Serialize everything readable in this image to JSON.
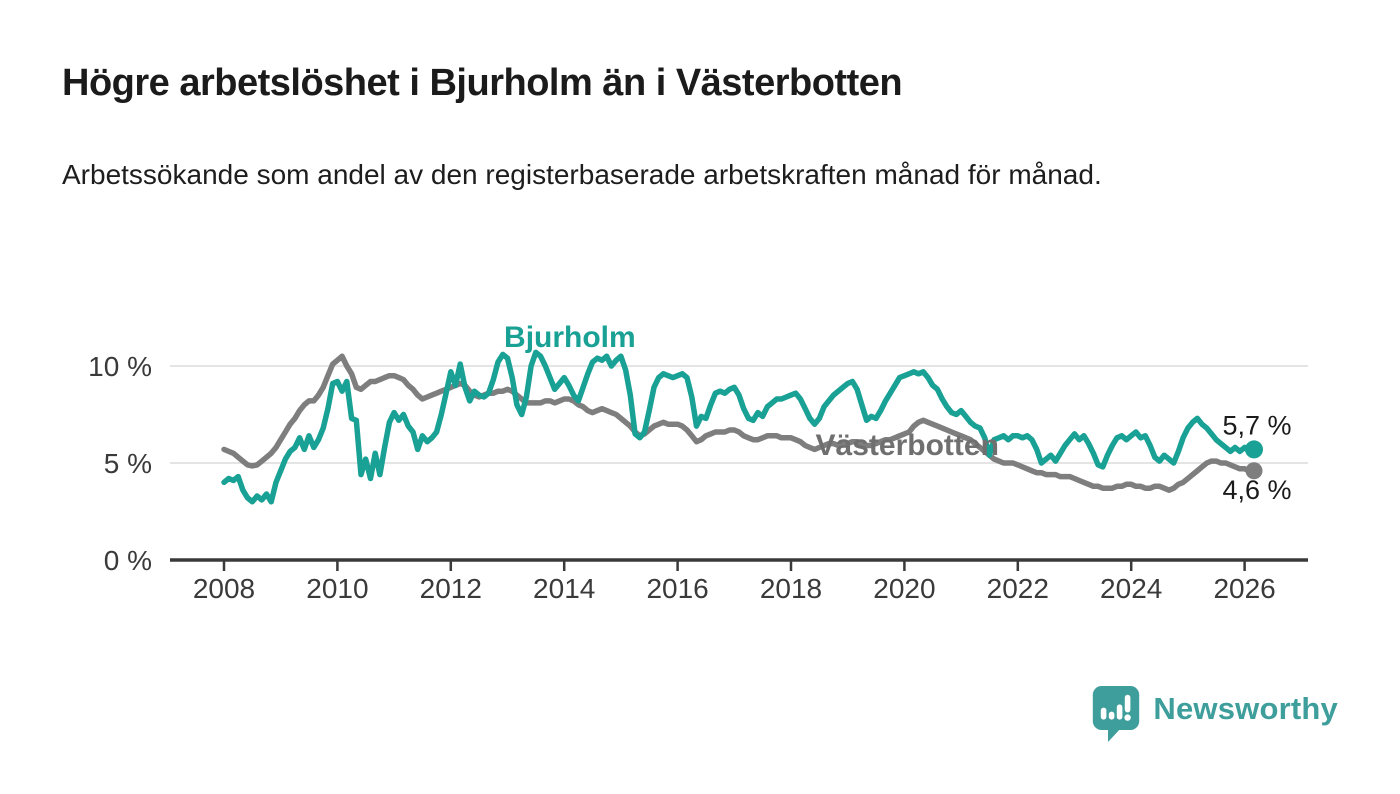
{
  "header": {
    "title": "Högre arbetslöshet i Bjurholm än i Västerbotten",
    "subtitle": "Arbetssökande som andel av den registerbaserade arbetskraften månad för månad."
  },
  "chart_data": {
    "type": "line",
    "frequency": "monthly",
    "x_start": 2008.0,
    "x_step": 0.08333,
    "x_ticks": [
      2008,
      2010,
      2012,
      2014,
      2016,
      2018,
      2020,
      2022,
      2024,
      2026
    ],
    "y_ticks": [
      {
        "value": 0,
        "label": "0 %"
      },
      {
        "value": 5,
        "label": "5 %"
      },
      {
        "value": 10,
        "label": "10 %"
      }
    ],
    "ylim": [
      0,
      11.6
    ],
    "xlim": [
      2007.0,
      2027.2
    ],
    "grid": "horizontal-only",
    "legend_position": "inline-labels",
    "series": [
      {
        "name": "Bjurholm",
        "color": "#18A194",
        "end_label": "5,7 %",
        "end_value": 5.7,
        "values": [
          4.0,
          4.2,
          4.1,
          4.3,
          3.6,
          3.2,
          3.0,
          3.3,
          3.1,
          3.4,
          3.0,
          4.0,
          4.6,
          5.2,
          5.6,
          5.8,
          6.3,
          5.7,
          6.4,
          5.8,
          6.2,
          6.8,
          7.8,
          9.1,
          9.2,
          8.7,
          9.2,
          7.3,
          7.2,
          4.4,
          5.2,
          4.2,
          5.5,
          4.4,
          5.8,
          7.1,
          7.6,
          7.2,
          7.5,
          6.9,
          6.6,
          5.7,
          6.4,
          6.1,
          6.3,
          6.6,
          7.5,
          8.6,
          9.7,
          9.0,
          10.1,
          8.9,
          8.2,
          8.7,
          8.5,
          8.4,
          8.6,
          9.3,
          10.2,
          10.6,
          10.4,
          9.4,
          8.0,
          7.5,
          8.4,
          10.0,
          10.7,
          10.5,
          10.0,
          9.4,
          8.8,
          9.1,
          9.4,
          9.0,
          8.5,
          8.2,
          8.9,
          9.6,
          10.2,
          10.4,
          10.3,
          10.5,
          10.0,
          10.3,
          10.5,
          9.8,
          8.5,
          6.5,
          6.3,
          6.6,
          7.7,
          8.9,
          9.4,
          9.6,
          9.5,
          9.4,
          9.5,
          9.6,
          9.4,
          8.4,
          6.9,
          7.4,
          7.3,
          8.0,
          8.6,
          8.7,
          8.6,
          8.8,
          8.9,
          8.5,
          7.8,
          7.3,
          7.2,
          7.6,
          7.4,
          7.9,
          8.1,
          8.3,
          8.3,
          8.4,
          8.5,
          8.6,
          8.3,
          7.8,
          7.3,
          7.0,
          7.3,
          7.9,
          8.2,
          8.5,
          8.7,
          8.9,
          9.1,
          9.2,
          8.8,
          8.0,
          7.2,
          7.4,
          7.3,
          7.7,
          8.2,
          8.6,
          9.0,
          9.4,
          9.5,
          9.6,
          9.7,
          9.6,
          9.7,
          9.4,
          9.0,
          8.8,
          8.3,
          7.9,
          7.6,
          7.5,
          7.7,
          7.4,
          7.1,
          6.9,
          6.8,
          6.3,
          5.4,
          6.2,
          6.3,
          6.4,
          6.2,
          6.4,
          6.4,
          6.3,
          6.4,
          6.2,
          5.7,
          5.0,
          5.2,
          5.4,
          5.1,
          5.5,
          5.9,
          6.2,
          6.5,
          6.2,
          6.4,
          6.0,
          5.5,
          4.9,
          4.8,
          5.4,
          5.9,
          6.3,
          6.4,
          6.2,
          6.4,
          6.6,
          6.3,
          6.4,
          5.9,
          5.3,
          5.1,
          5.4,
          5.2,
          5.0,
          5.6,
          6.3,
          6.8,
          7.1,
          7.3,
          7.0,
          6.8,
          6.5,
          6.2,
          6.0,
          5.8,
          5.6,
          5.8,
          5.6,
          5.8,
          5.6,
          5.7
        ]
      },
      {
        "name": "Västerbotten",
        "color": "#7E7E7E",
        "label_color": "#6F6F6F",
        "end_label": "4,6 %",
        "end_value": 4.6,
        "values": [
          5.7,
          5.6,
          5.5,
          5.3,
          5.1,
          4.9,
          4.85,
          4.9,
          5.1,
          5.3,
          5.5,
          5.8,
          6.2,
          6.6,
          7.0,
          7.3,
          7.7,
          8.0,
          8.2,
          8.2,
          8.5,
          8.9,
          9.5,
          10.1,
          10.3,
          10.5,
          10.0,
          9.6,
          8.9,
          8.8,
          9.0,
          9.2,
          9.2,
          9.3,
          9.4,
          9.5,
          9.5,
          9.4,
          9.3,
          9.0,
          8.8,
          8.5,
          8.3,
          8.4,
          8.5,
          8.6,
          8.7,
          8.8,
          8.9,
          9.0,
          9.1,
          9.0,
          8.7,
          8.5,
          8.4,
          8.5,
          8.6,
          8.6,
          8.7,
          8.7,
          8.8,
          8.7,
          8.5,
          8.3,
          8.1,
          8.1,
          8.1,
          8.1,
          8.2,
          8.2,
          8.1,
          8.2,
          8.3,
          8.3,
          8.2,
          8.0,
          7.9,
          7.7,
          7.6,
          7.7,
          7.8,
          7.7,
          7.6,
          7.5,
          7.3,
          7.1,
          6.9,
          6.6,
          6.4,
          6.5,
          6.7,
          6.9,
          7.0,
          7.1,
          7.0,
          7.0,
          7.0,
          6.9,
          6.7,
          6.4,
          6.1,
          6.2,
          6.4,
          6.5,
          6.6,
          6.6,
          6.6,
          6.7,
          6.7,
          6.6,
          6.4,
          6.3,
          6.2,
          6.2,
          6.3,
          6.4,
          6.4,
          6.4,
          6.3,
          6.3,
          6.3,
          6.2,
          6.1,
          5.9,
          5.8,
          5.7,
          5.8,
          5.9,
          6.0,
          6.0,
          5.9,
          6.0,
          6.0,
          6.1,
          6.1,
          6.0,
          5.9,
          5.9,
          6.0,
          6.1,
          6.2,
          6.2,
          6.3,
          6.4,
          6.5,
          6.6,
          6.9,
          7.1,
          7.2,
          7.1,
          7.0,
          6.9,
          6.8,
          6.7,
          6.6,
          6.5,
          6.4,
          6.3,
          6.2,
          6.0,
          5.8,
          5.6,
          5.4,
          5.2,
          5.1,
          5.0,
          5.0,
          5.0,
          4.9,
          4.8,
          4.7,
          4.6,
          4.5,
          4.5,
          4.4,
          4.4,
          4.4,
          4.3,
          4.3,
          4.3,
          4.2,
          4.1,
          4.0,
          3.9,
          3.8,
          3.8,
          3.7,
          3.7,
          3.7,
          3.8,
          3.8,
          3.9,
          3.9,
          3.8,
          3.8,
          3.7,
          3.7,
          3.8,
          3.8,
          3.7,
          3.6,
          3.7,
          3.9,
          4.0,
          4.2,
          4.4,
          4.6,
          4.8,
          5.0,
          5.1,
          5.1,
          5.0,
          5.0,
          4.9,
          4.8,
          4.7,
          4.7,
          4.6,
          4.6
        ]
      }
    ]
  },
  "colors": {
    "accent_teal": "#18A194",
    "line_gray": "#7E7E7E",
    "label_gray": "#6F6F6F",
    "text_dark": "#1b1b1b",
    "axis": "#3a3a3a",
    "gridline": "#dcdcdc",
    "logo_teal": "#3E9E9B",
    "background": "#ffffff"
  },
  "footer": {
    "brand": "Newsworthy"
  }
}
